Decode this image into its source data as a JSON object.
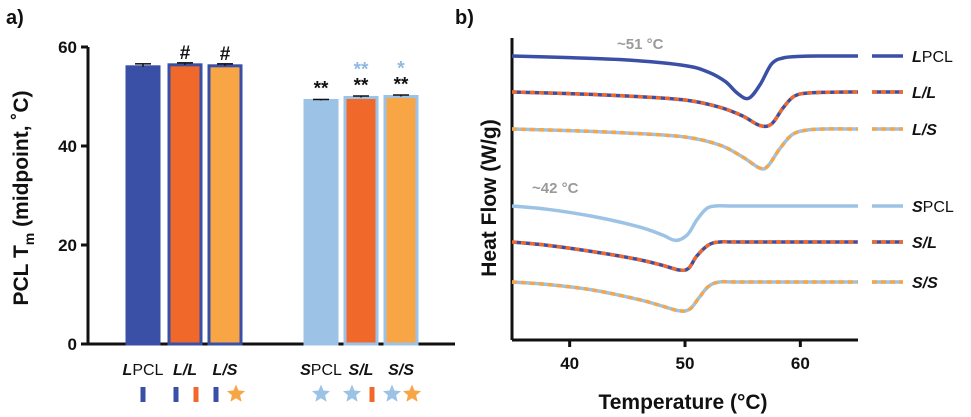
{
  "colors": {
    "LPCL": "#3a4fa6",
    "SPCL": "#9cc3e6",
    "L_orange": "#f0692a",
    "S_orange": "#f7a545",
    "black": "#111111",
    "annot_gray": "#9a9a9a",
    "sig_light": "#8fb9e3"
  },
  "chart_data": [
    {
      "panel": "a)",
      "type": "bar",
      "ylabel": "PCL T_m (midpoint, ˚C)",
      "ylabel_parts": {
        "pre": "PCL T",
        "sub": "m",
        "post": " (midpoint, ˚C)"
      },
      "ylim": [
        0,
        60
      ],
      "yticks": [
        "0",
        "20",
        "40",
        "60"
      ],
      "categories": [
        {
          "id": "LPCL",
          "prefix": "L",
          "suffix": "PCL",
          "value": 56.0,
          "err": 0.6,
          "fill": "#3a4fa6",
          "edge": "#3a4fa6",
          "sig": [],
          "markers": [
            "bar-LPCL"
          ]
        },
        {
          "id": "L/L",
          "prefix": "L/L",
          "suffix": "",
          "value": 56.4,
          "err": 0.4,
          "fill": "#f0692a",
          "edge": "#3a4fa6",
          "sig": [
            {
              "text": "#",
              "color": "#111111"
            }
          ],
          "markers": [
            "bar-LPCL",
            "bar-L_orange"
          ]
        },
        {
          "id": "L/S",
          "prefix": "L/S",
          "suffix": "",
          "value": 56.2,
          "err": 0.4,
          "fill": "#f7a545",
          "edge": "#3a4fa6",
          "sig": [
            {
              "text": "#",
              "color": "#111111"
            }
          ],
          "markers": [
            "bar-LPCL",
            "star-S_orange"
          ]
        },
        {
          "id": "SPCL",
          "prefix": "S",
          "suffix": "PCL",
          "value": 49.2,
          "err": 0.2,
          "fill": "#9cc3e6",
          "edge": "#9cc3e6",
          "sig": [
            {
              "text": "**",
              "color": "#111111"
            }
          ],
          "markers": [
            "star-SPCL"
          ]
        },
        {
          "id": "S/L",
          "prefix": "S/L",
          "suffix": "",
          "value": 49.8,
          "err": 0.3,
          "fill": "#f0692a",
          "edge": "#9cc3e6",
          "sig": [
            {
              "text": "**",
              "color": "#111111"
            },
            {
              "text": "**",
              "color": "#8fb9e3"
            }
          ],
          "markers": [
            "star-SPCL",
            "bar-L_orange"
          ]
        },
        {
          "id": "S/S",
          "prefix": "S/S",
          "suffix": "",
          "value": 50.0,
          "err": 0.3,
          "fill": "#f7a545",
          "edge": "#9cc3e6",
          "sig": [
            {
              "text": "**",
              "color": "#111111"
            },
            {
              "text": "*",
              "color": "#8fb9e3"
            }
          ],
          "markers": [
            "star-SPCL",
            "star-S_orange"
          ]
        }
      ]
    },
    {
      "panel": "b)",
      "type": "line",
      "xlabel": "Temperature (°C)",
      "ylabel": "Heat Flow (W/g)",
      "xlim": [
        35,
        65
      ],
      "xticks": [
        "40",
        "50",
        "60"
      ],
      "annotations": [
        "~51 °C",
        "~42 °C"
      ],
      "series": [
        {
          "id": "LPCL",
          "prefix": "L",
          "suffix": "PCL",
          "style": "solid",
          "color": "#3a4fa6",
          "x": [
            35,
            40,
            45,
            50,
            52,
            53.5,
            54.5,
            55.5,
            56.5,
            57.5,
            58.5,
            60,
            62,
            65
          ],
          "y": [
            0,
            -0.2,
            -0.5,
            -1.2,
            -2.0,
            -3.2,
            -4.6,
            -5.3,
            -3.6,
            -1.0,
            -0.25,
            -0.05,
            0,
            0
          ]
        },
        {
          "id": "L/L",
          "prefix": "L/L",
          "suffix": "",
          "style": "dashed",
          "color": "#3a4fa6",
          "dash": "#f0692a",
          "x": [
            35,
            40,
            45,
            50,
            53,
            55,
            56.5,
            57.5,
            58.5,
            59.5,
            61,
            65
          ],
          "y": [
            0,
            -0.2,
            -0.5,
            -1.0,
            -1.9,
            -3.0,
            -4.2,
            -4.0,
            -2.0,
            -0.5,
            -0.1,
            0
          ]
        },
        {
          "id": "L/S",
          "prefix": "L/S",
          "suffix": "",
          "style": "dashed",
          "color": "#9cc3e6",
          "dash": "#f7a545",
          "x": [
            35,
            40,
            45,
            50,
            53,
            55,
            56.5,
            57.2,
            58.2,
            59.3,
            60.5,
            62,
            65
          ],
          "y": [
            0,
            -0.2,
            -0.5,
            -1.0,
            -2.0,
            -3.5,
            -4.9,
            -4.6,
            -2.5,
            -0.7,
            -0.15,
            0,
            0
          ]
        },
        {
          "id": "SPCL",
          "prefix": "S",
          "suffix": "PCL",
          "style": "solid",
          "color": "#9cc3e6",
          "x": [
            35,
            38,
            42,
            46,
            48,
            49.2,
            50.2,
            51,
            51.8,
            52.6,
            54,
            56,
            65
          ],
          "y": [
            0,
            -0.4,
            -1.3,
            -2.6,
            -3.6,
            -4.3,
            -3.6,
            -1.8,
            -0.4,
            0,
            0,
            0,
            0
          ]
        },
        {
          "id": "S/L",
          "prefix": "S/L",
          "suffix": "",
          "style": "dashed",
          "color": "#3a4fa6",
          "dash": "#f0692a",
          "x": [
            35,
            38,
            42,
            46,
            48,
            49.5,
            50.3,
            51,
            52,
            53,
            55,
            65
          ],
          "y": [
            0,
            -0.4,
            -1.2,
            -2.2,
            -2.9,
            -3.5,
            -3.3,
            -1.8,
            -0.4,
            0,
            0,
            0
          ]
        },
        {
          "id": "S/S",
          "prefix": "S/S",
          "suffix": "",
          "style": "dashed",
          "color": "#9cc3e6",
          "dash": "#f7a545",
          "x": [
            35,
            38,
            42,
            46,
            48,
            49.5,
            50.4,
            51.2,
            52,
            53,
            55,
            65
          ],
          "y": [
            0,
            -0.3,
            -1.0,
            -2.2,
            -3.0,
            -3.6,
            -3.4,
            -2.0,
            -0.6,
            0,
            0,
            0
          ]
        }
      ]
    }
  ]
}
